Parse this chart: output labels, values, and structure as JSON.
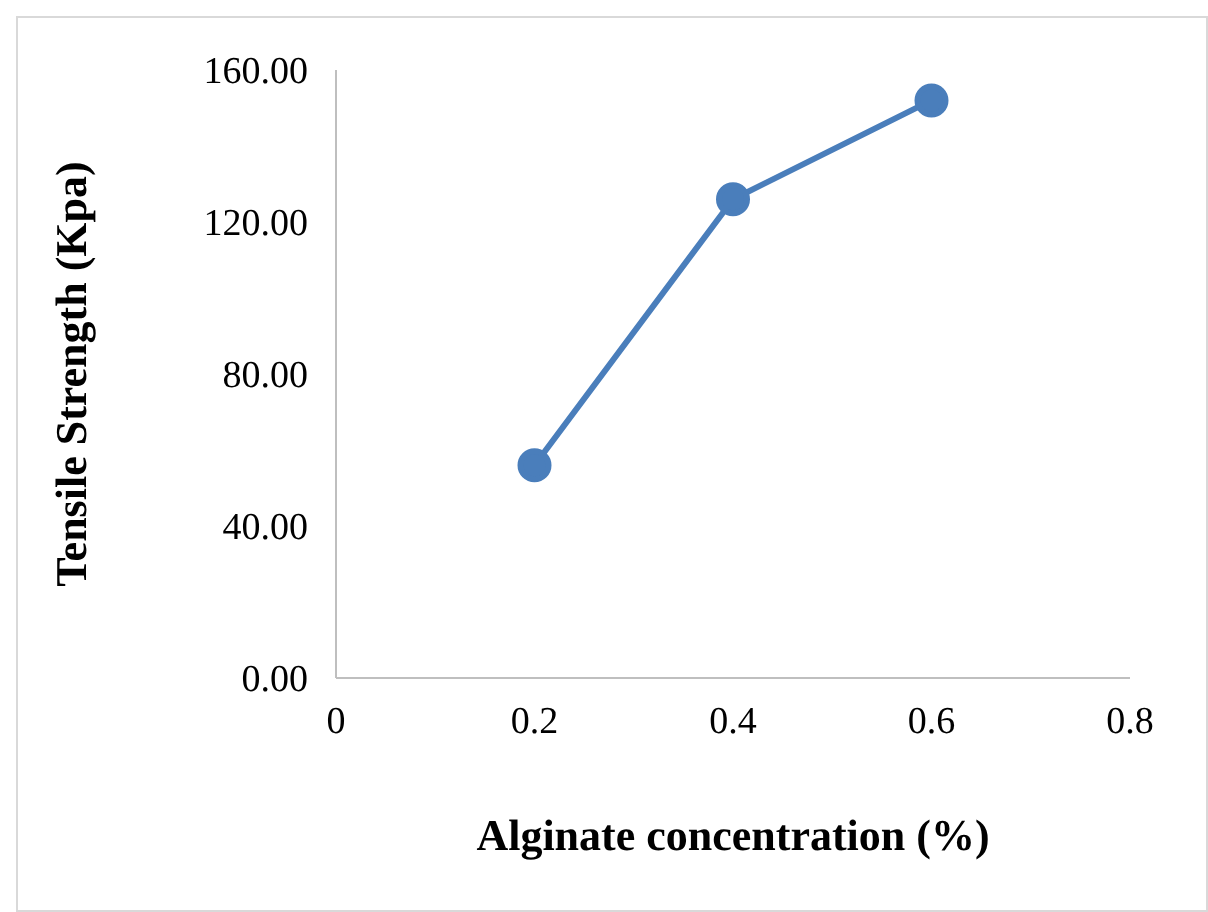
{
  "chart_data": {
    "type": "line",
    "xlabel": "Alginate concentration (%)",
    "ylabel": "Tensile Strength (Kpa)",
    "x": [
      0.2,
      0.4,
      0.6
    ],
    "series": [
      {
        "color": "#4a7ebb",
        "values": [
          56,
          126,
          152
        ]
      }
    ],
    "xlim": [
      0,
      0.8
    ],
    "xticks": [
      0,
      0.2,
      0.4,
      0.6,
      0.8
    ],
    "ylim": [
      0,
      160
    ],
    "yticks": [
      {
        "value": 0,
        "label": "0.00"
      },
      {
        "value": 40,
        "label": "40.00"
      },
      {
        "value": 80,
        "label": "80.00"
      },
      {
        "value": 120,
        "label": "120.00"
      },
      {
        "value": 160,
        "label": "160.00"
      }
    ],
    "grid": false,
    "legend": false,
    "marker": "circle",
    "line_style": "solid"
  }
}
